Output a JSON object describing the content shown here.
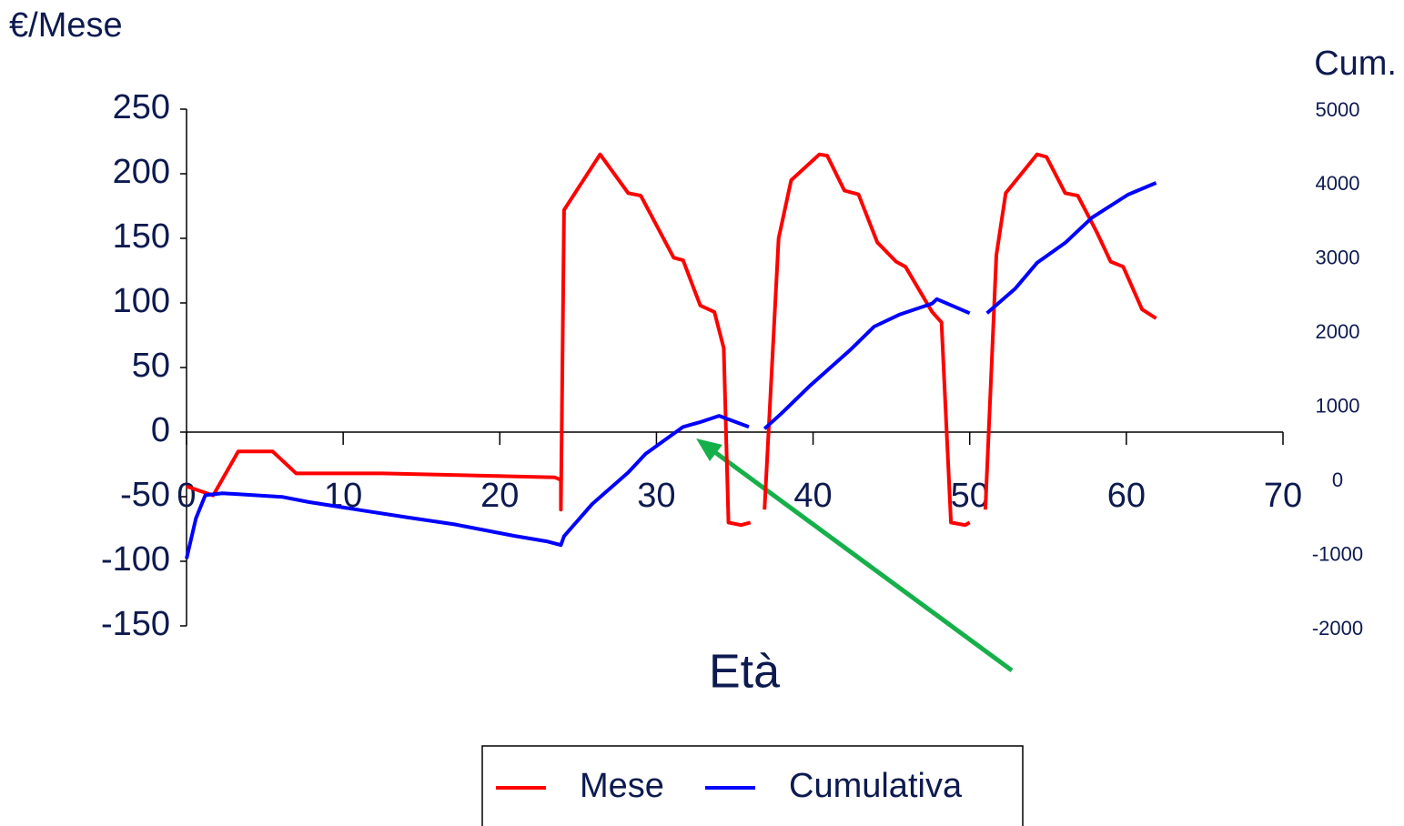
{
  "chart_data": {
    "type": "line",
    "y_label": "€/Mese",
    "y2_label": "Cum.",
    "x_label": "Età",
    "xlim": [
      0,
      70
    ],
    "xticks": [
      0,
      10,
      20,
      30,
      40,
      50,
      60,
      70
    ],
    "ylim": [
      -150,
      250
    ],
    "yticks": [
      -150,
      -100,
      -50,
      0,
      50,
      100,
      150,
      200,
      250
    ],
    "y2lim": [
      -2000,
      5000
    ],
    "y2ticks": [
      -2000,
      -1000,
      0,
      1000,
      2000,
      3000,
      4000,
      5000
    ],
    "series": [
      {
        "name": "Mese",
        "color": "#ff0000",
        "x": [
          0,
          1.7,
          3.3,
          5.5,
          7,
          12.5,
          23.5,
          23.9,
          23.9,
          24.1,
          26.4,
          28.2,
          29,
          31.1,
          31.7,
          32.8,
          33.7,
          34.3,
          34.6,
          35.4,
          36,
          36.4,
          36.9,
          37.8,
          38.6,
          40.4,
          40.9,
          42,
          42.9,
          44.1,
          45.3,
          45.9,
          47.6,
          48.2,
          48.8,
          49.7,
          50,
          50.5,
          51,
          51.7,
          52.3,
          54.3,
          54.9,
          56.1,
          56.9,
          58.1,
          59,
          59.8,
          61,
          61.9
        ],
        "values": [
          -42,
          -49,
          -15,
          -15,
          -32,
          -32,
          -35,
          -37,
          -60,
          172,
          215,
          185,
          183,
          135,
          133,
          98,
          93,
          65,
          -70,
          -72,
          -70,
          null,
          -60,
          150,
          195,
          215,
          214,
          187,
          184,
          147,
          132,
          128,
          93,
          85,
          -70,
          -72,
          -70,
          null,
          -60,
          137,
          185,
          215,
          213,
          185,
          183,
          155,
          132,
          128,
          95,
          88
        ]
      },
      {
        "name": "Cumulativa",
        "color": "#0000ff",
        "axis": "y2",
        "x": [
          0,
          0.6,
          1.2,
          2.3,
          6.1,
          7.8,
          11.3,
          14.2,
          17.1,
          20.9,
          23,
          23.9,
          24.1,
          25.9,
          28.2,
          29.3,
          31.7,
          32.8,
          34,
          35.9,
          36.4,
          36.9,
          38,
          39.8,
          42.4,
          43.9,
          45.5,
          47.6,
          47.9,
          50,
          50.5,
          51.1,
          52.9,
          54.3,
          56.1,
          57.8,
          60.1,
          61.9
        ],
        "values": [
          -1045,
          -500,
          -185,
          -160,
          -210,
          -280,
          -395,
          -490,
          -580,
          -735,
          -810,
          -860,
          -740,
          -305,
          120,
          370,
          735,
          800,
          885,
          735,
          null,
          710,
          920,
          1290,
          1780,
          2090,
          2250,
          2400,
          2460,
          2270,
          null,
          2270,
          2600,
          2950,
          3220,
          3560,
          3870,
          4030
        ]
      }
    ]
  }
}
